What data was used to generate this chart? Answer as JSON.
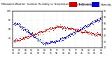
{
  "title": "Milwaukee Weather  Outdoor Humidity vs Temperature  Every 5 Minutes",
  "legend_humidity": "Humidity",
  "legend_temp": "Temperature",
  "humidity_color": "#0000cc",
  "temp_color": "#cc0000",
  "background_color": "#ffffff",
  "grid_color": "#bbbbbb",
  "ylim_left": [
    20,
    100
  ],
  "ylim_right": [
    20,
    80
  ],
  "y_ticks_left": [
    40,
    60,
    80,
    100
  ],
  "y_ticks_right": [
    20,
    30,
    40,
    50,
    60,
    70,
    80
  ],
  "title_fontsize": 2.5,
  "tick_fontsize": 2.2,
  "legend_fontsize": 2.5,
  "dot_size": 0.5,
  "n_points": 288
}
